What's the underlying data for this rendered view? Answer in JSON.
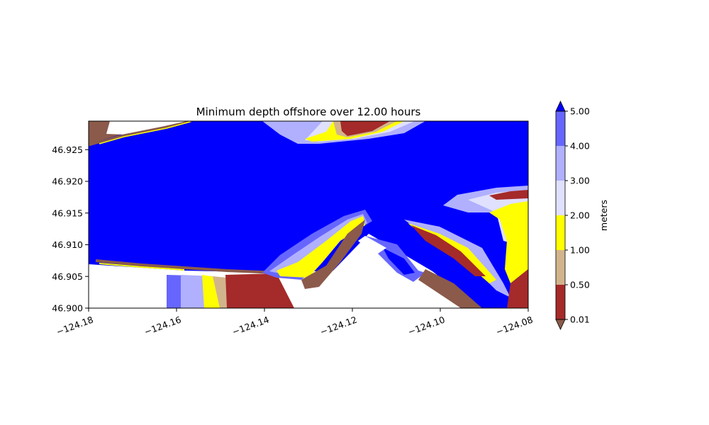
{
  "chart_data": {
    "type": "heatmap",
    "title": "Minimum depth offshore over 12.00 hours",
    "xlabel": "",
    "ylabel": "",
    "xlim": [
      -124.18,
      -124.08
    ],
    "ylim": [
      46.9,
      46.9295
    ],
    "x_ticks": [
      -124.18,
      -124.16,
      -124.14,
      -124.12,
      -124.1,
      -124.08
    ],
    "x_tick_labels": [
      "−124.18",
      "−124.16",
      "−124.14",
      "−124.12",
      "−124.10",
      "−124.08"
    ],
    "y_ticks": [
      46.9,
      46.905,
      46.91,
      46.915,
      46.92,
      46.925
    ],
    "y_tick_labels": [
      "46.900",
      "46.905",
      "46.910",
      "46.915",
      "46.920",
      "46.925"
    ],
    "grid": false,
    "colorbar": {
      "label": "meters",
      "levels": [
        0.01,
        0.5,
        1.0,
        2.0,
        3.0,
        4.0,
        5.0
      ],
      "level_labels": [
        "0.01",
        "0.50",
        "1.00",
        "2.00",
        "3.00",
        "4.00",
        "5.00"
      ],
      "colors": [
        "#a52a2a",
        "#d2b48c",
        "#ffff00",
        "#e0e0ff",
        "#b0b0ff",
        "#6666ff"
      ],
      "under_color": "#8b5a4a",
      "over_color": "#0000ff",
      "extend": "both"
    },
    "colors": {
      "deep_water": "#0000ff",
      "land": "#ffffff"
    }
  }
}
